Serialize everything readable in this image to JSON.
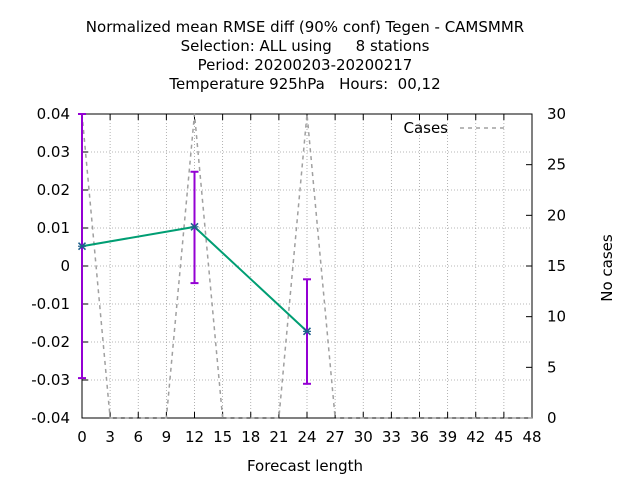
{
  "chart_data": {
    "type": "line",
    "title_lines": [
      "Normalized mean RMSE diff (90% conf) Tegen - CAMSMMR",
      "Selection: ALL using     8 stations",
      "Period: 20200203-20200217",
      "Temperature 925hPa   Hours:  00,12"
    ],
    "xlabel": "Forecast length",
    "ylabel": "",
    "y2label": "No cases",
    "xlim": [
      0,
      48
    ],
    "ylim": [
      -0.04,
      0.04
    ],
    "y2lim": [
      0,
      30
    ],
    "x_ticks": [
      "0",
      "3",
      "6",
      "9",
      "12",
      "15",
      "18",
      "21",
      "24",
      "27",
      "30",
      "33",
      "36",
      "39",
      "42",
      "45",
      "48"
    ],
    "y_ticks": [
      "-0.04",
      "-0.03",
      "-0.02",
      "-0.01",
      "0",
      "0.01",
      "0.02",
      "0.03",
      "0.04"
    ],
    "y2_ticks": [
      "0",
      "5",
      "10",
      "15",
      "20",
      "25",
      "30"
    ],
    "grid": true,
    "legend_position": "top-right",
    "colors": {
      "line": "#009e73",
      "errorbar": "#9400d3",
      "cases": "#a0a0a0"
    },
    "series": [
      {
        "x": [
          0,
          12,
          24
        ],
        "y": [
          0.0052,
          0.0103,
          -0.0172
        ],
        "err_low": [
          -0.0295,
          -0.0045,
          -0.031
        ],
        "err_high": [
          0.04,
          0.0248,
          -0.0035
        ]
      }
    ],
    "cases_series": {
      "name": "Cases",
      "x": [
        0,
        3,
        6,
        9,
        12,
        15,
        18,
        21,
        24,
        27,
        30,
        33,
        36,
        39,
        42,
        45,
        48
      ],
      "y": [
        30,
        0,
        0,
        0,
        30,
        0,
        0,
        0,
        30,
        0,
        0,
        0,
        0,
        0,
        0,
        0,
        0
      ]
    }
  }
}
